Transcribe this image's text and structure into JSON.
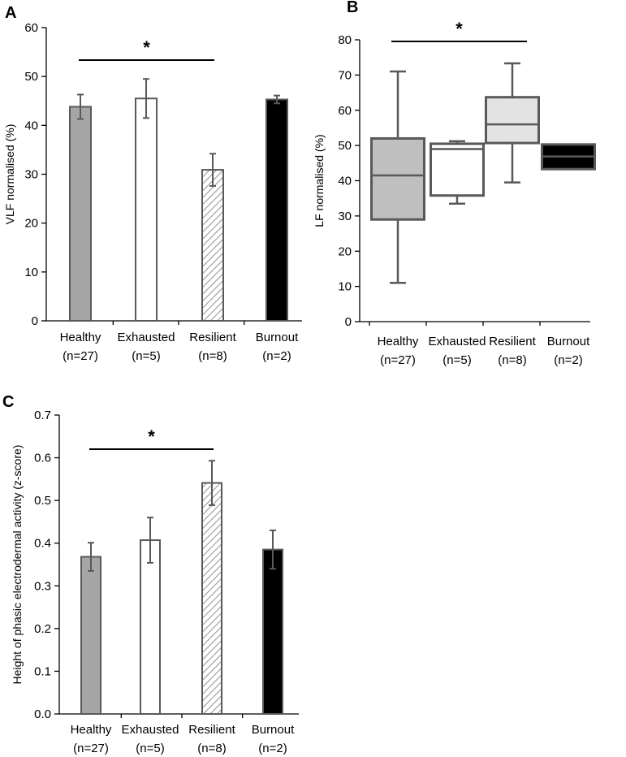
{
  "chart_data": [
    {
      "panel": "A",
      "type": "bar",
      "categories": [
        "Healthy",
        "Exhausted",
        "Resilient",
        "Burnout"
      ],
      "category_n": [
        "(n=27)",
        "(n=5)",
        "(n=8)",
        "(n=2)"
      ],
      "values": [
        43.8,
        45.5,
        30.9,
        45.3
      ],
      "errors": [
        2.5,
        4.0,
        3.3,
        0.8
      ],
      "fills": [
        "#a6a6a6",
        "#ffffff",
        "hatch",
        "#000000"
      ],
      "ylabel": "VLF normalised (%)",
      "ylim": [
        0,
        60
      ],
      "yticks": [
        "0",
        "10",
        "20",
        "30",
        "40",
        "50",
        "60"
      ],
      "significance": {
        "from": 0,
        "to": 2,
        "label": "*"
      }
    },
    {
      "panel": "B",
      "type": "box",
      "categories": [
        "Healthy",
        "Exhausted",
        "Resilient",
        "Burnout"
      ],
      "category_n": [
        "(n=27)",
        "(n=5)",
        "(n=8)",
        "(n=2)"
      ],
      "boxes": [
        {
          "min": 11,
          "q1": 29,
          "median": 41.5,
          "q3": 52,
          "max": 71
        },
        {
          "min": 33.5,
          "q1": 35.8,
          "median": 49,
          "q3": 50.5,
          "max": 51.2
        },
        {
          "min": 39.5,
          "q1": 50.7,
          "median": 56,
          "q3": 63.7,
          "max": 73.3
        },
        {
          "min": 43.3,
          "q1": 43.3,
          "median": 46.9,
          "q3": 50.3,
          "max": 50.3
        }
      ],
      "fills": [
        "#bfbfbf",
        "#ffffff",
        "#e3e3e3",
        "#000000"
      ],
      "ylabel": "LF normalised (%)",
      "ylim": [
        0,
        80
      ],
      "yticks": [
        "0",
        "10",
        "20",
        "30",
        "40",
        "50",
        "60",
        "70",
        "80"
      ],
      "significance": {
        "from": 0,
        "to": 2,
        "label": "*"
      }
    },
    {
      "panel": "C",
      "type": "bar",
      "categories": [
        "Healthy",
        "Exhausted",
        "Resilient",
        "Burnout"
      ],
      "category_n": [
        "(n=27)",
        "(n=5)",
        "(n=8)",
        "(n=2)"
      ],
      "values": [
        0.368,
        0.407,
        0.541,
        0.385
      ],
      "errors": [
        0.033,
        0.053,
        0.052,
        0.045
      ],
      "fills": [
        "#a6a6a6",
        "#ffffff",
        "hatch",
        "#000000"
      ],
      "ylabel": "Height of phasic electrodermal activity (z-score)",
      "ylim": [
        0,
        0.7
      ],
      "yticks": [
        "0.0",
        "0.1",
        "0.2",
        "0.3",
        "0.4",
        "0.5",
        "0.6",
        "0.7"
      ],
      "significance": {
        "from": 0,
        "to": 2,
        "label": "*"
      }
    }
  ]
}
